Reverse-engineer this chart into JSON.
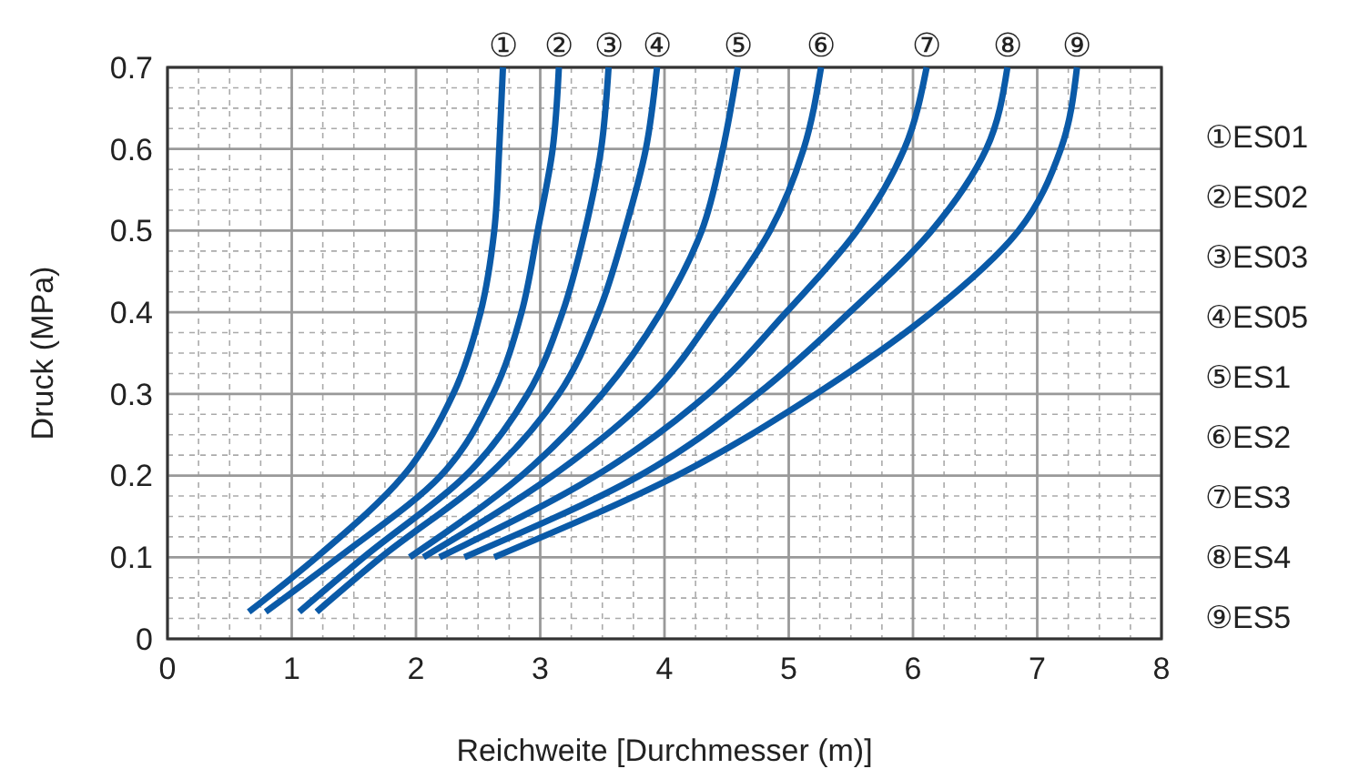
{
  "chart_data": {
    "type": "line",
    "xlabel": "Reichweite [Durchmesser (m)]",
    "ylabel": "Druck (MPa)",
    "xlim": [
      0,
      8
    ],
    "ylim": [
      0,
      0.7
    ],
    "xticks": [
      0,
      1,
      2,
      3,
      4,
      5,
      6,
      7,
      8
    ],
    "yticks": [
      0,
      0.1,
      0.2,
      0.3,
      0.4,
      0.5,
      0.6,
      0.7
    ],
    "grid": true,
    "legend": "right",
    "marker": "none",
    "line_style": "solid",
    "series": [
      {
        "name": "①ES01",
        "color": "#0a5aa8",
        "x": [
          0.655,
          1.2,
          1.9,
          2.3,
          2.52,
          2.63,
          2.67,
          2.7
        ],
        "values": [
          0.033,
          0.1,
          0.2,
          0.3,
          0.4,
          0.5,
          0.6,
          0.7
        ]
      },
      {
        "name": "②ES02",
        "color": "#0a5aa8",
        "x": [
          0.79,
          1.38,
          2.2,
          2.62,
          2.85,
          2.98,
          3.1,
          3.15
        ],
        "values": [
          0.033,
          0.1,
          0.2,
          0.3,
          0.4,
          0.5,
          0.6,
          0.7
        ]
      },
      {
        "name": "③ES03",
        "color": "#0a5aa8",
        "x": [
          1.06,
          1.58,
          2.4,
          2.9,
          3.18,
          3.36,
          3.49,
          3.55
        ],
        "values": [
          0.033,
          0.1,
          0.2,
          0.3,
          0.4,
          0.5,
          0.6,
          0.7
        ]
      },
      {
        "name": "④ES05",
        "color": "#0a5aa8",
        "x": [
          1.2,
          1.72,
          2.58,
          3.15,
          3.47,
          3.68,
          3.85,
          3.94
        ],
        "values": [
          0.033,
          0.1,
          0.2,
          0.3,
          0.4,
          0.5,
          0.6,
          0.7
        ]
      },
      {
        "name": "⑤ES1",
        "color": "#0a5aa8",
        "x": [
          1.95,
          2.85,
          3.5,
          3.97,
          4.3,
          4.47,
          4.59
        ],
        "values": [
          0.1,
          0.2,
          0.3,
          0.4,
          0.5,
          0.6,
          0.7
        ]
      },
      {
        "name": "⑥ES2",
        "color": "#0a5aa8",
        "x": [
          2.06,
          3.1,
          3.9,
          4.41,
          4.85,
          5.12,
          5.26
        ],
        "values": [
          0.1,
          0.2,
          0.3,
          0.4,
          0.5,
          0.6,
          0.7
        ]
      },
      {
        "name": "⑦ES3",
        "color": "#0a5aa8",
        "x": [
          2.19,
          3.45,
          4.35,
          4.98,
          5.55,
          5.93,
          6.11
        ],
        "values": [
          0.1,
          0.2,
          0.3,
          0.4,
          0.5,
          0.6,
          0.7
        ]
      },
      {
        "name": "⑧ES4",
        "color": "#0a5aa8",
        "x": [
          2.39,
          3.8,
          4.75,
          5.49,
          6.15,
          6.59,
          6.76
        ],
        "values": [
          0.1,
          0.2,
          0.3,
          0.4,
          0.5,
          0.6,
          0.7
        ]
      },
      {
        "name": "⑨ES5",
        "color": "#0a5aa8",
        "x": [
          2.63,
          4.1,
          5.22,
          6.15,
          6.85,
          7.19,
          7.32
        ],
        "values": [
          0.1,
          0.2,
          0.3,
          0.4,
          0.5,
          0.6,
          0.7
        ]
      }
    ],
    "annotations": [
      {
        "text": "①",
        "x": 2.7,
        "y": 0.7
      },
      {
        "text": "②",
        "x": 3.15,
        "y": 0.7
      },
      {
        "text": "③",
        "x": 3.55,
        "y": 0.7
      },
      {
        "text": "④",
        "x": 3.94,
        "y": 0.7
      },
      {
        "text": "⑤",
        "x": 4.59,
        "y": 0.7
      },
      {
        "text": "⑥",
        "x": 5.26,
        "y": 0.7
      },
      {
        "text": "⑦",
        "x": 6.11,
        "y": 0.7
      },
      {
        "text": "⑧",
        "x": 6.76,
        "y": 0.7
      },
      {
        "text": "⑨",
        "x": 7.32,
        "y": 0.7
      }
    ]
  }
}
